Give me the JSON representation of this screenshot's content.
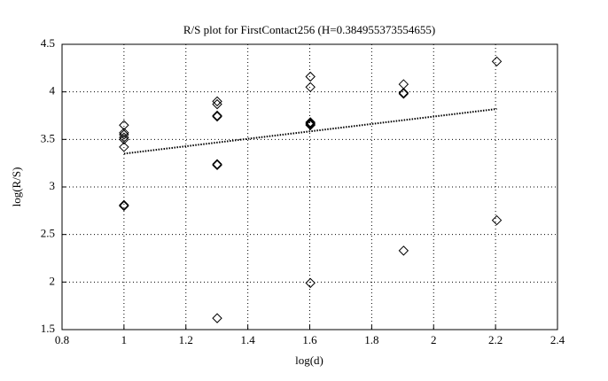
{
  "chart_data": {
    "type": "scatter",
    "title": "R/S plot for FirstContact256 (H=0.384955373554655)",
    "x_label": "log(d)",
    "y_label": "log(R/S)",
    "xlim": [
      0.8,
      2.4
    ],
    "xticks": [
      0.8,
      1,
      1.2,
      1.4,
      1.6,
      1.8,
      2,
      2.2,
      2.4
    ],
    "ylim": [
      1.5,
      4.5
    ],
    "yticks": [
      1.5,
      2,
      2.5,
      3,
      3.5,
      4,
      4.5
    ],
    "grid": true,
    "series": [
      {
        "marker": "diamond",
        "color": "#000000",
        "x": [
          1,
          1,
          1,
          1,
          1,
          1,
          1,
          1,
          1.301,
          1.301,
          1.301,
          1.301,
          1.301,
          1.301,
          1.301,
          1.602,
          1.602,
          1.602,
          1.602,
          1.602,
          1.602,
          1.602,
          1.903,
          1.903,
          1.903,
          1.903,
          2.204,
          2.204
        ],
        "values": [
          3.65,
          3.57,
          3.55,
          3.52,
          3.5,
          3.42,
          2.81,
          2.8,
          3.9,
          3.87,
          3.75,
          3.74,
          3.24,
          3.23,
          1.62,
          4.16,
          4.05,
          3.68,
          3.67,
          3.66,
          3.65,
          1.99,
          4.08,
          3.99,
          3.98,
          2.33,
          4.32,
          2.65
        ]
      },
      {
        "line": "dotted",
        "color": "#000000",
        "x": [
          1,
          2.204
        ],
        "values": [
          3.35,
          3.82
        ]
      }
    ]
  }
}
